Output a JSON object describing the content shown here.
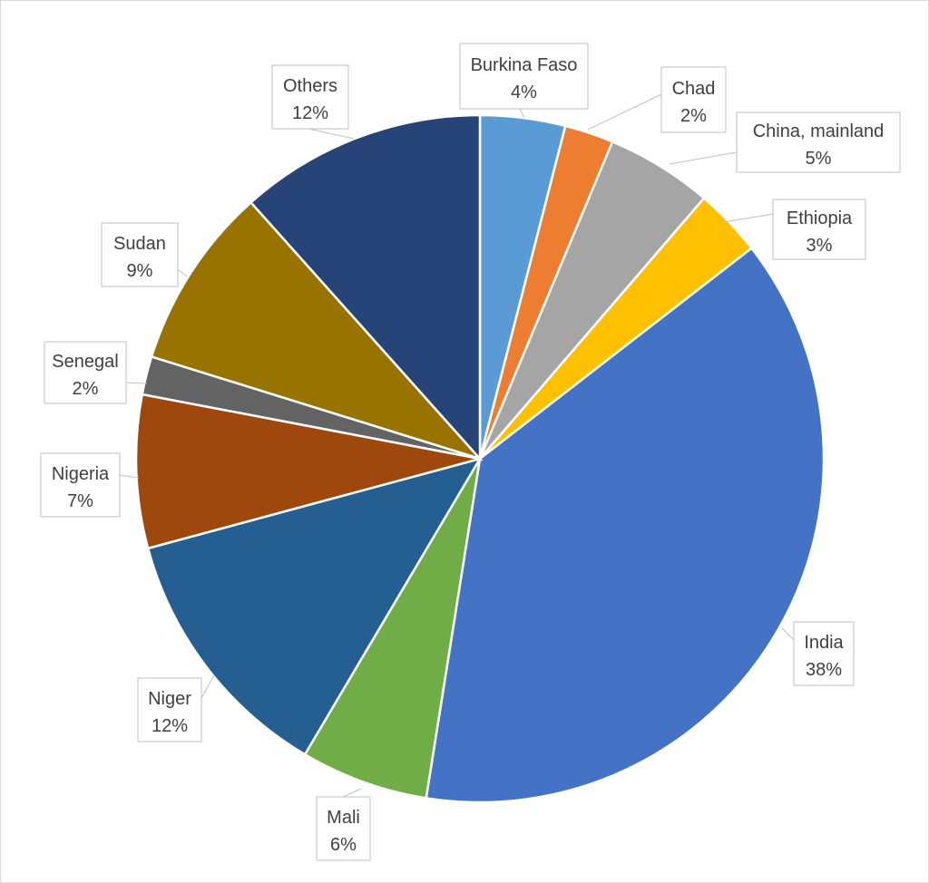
{
  "chart_data": {
    "type": "pie",
    "title": "",
    "slices": [
      {
        "label": "Burkina Faso",
        "value": 4,
        "value_label": "4%",
        "color": "#5B9BD5"
      },
      {
        "label": "Chad",
        "value": 2.3,
        "value_label": "2%",
        "color": "#ED7D31"
      },
      {
        "label": "China, mainland",
        "value": 5,
        "value_label": "5%",
        "color": "#A5A5A5"
      },
      {
        "label": "Ethiopia",
        "value": 3.2,
        "value_label": "3%",
        "color": "#FFC000"
      },
      {
        "label": "India",
        "value": 38,
        "value_label": "38%",
        "color": "#4472C4"
      },
      {
        "label": "Mali",
        "value": 6,
        "value_label": "6%",
        "color": "#70AD47"
      },
      {
        "label": "Niger",
        "value": 12.3,
        "value_label": "12%",
        "color": "#255E91"
      },
      {
        "label": "Nigeria",
        "value": 7.2,
        "value_label": "7%",
        "color": "#9E480E"
      },
      {
        "label": "Senegal",
        "value": 1.8,
        "value_label": "2%",
        "color": "#636363"
      },
      {
        "label": "Sudan",
        "value": 8.6,
        "value_label": "9%",
        "color": "#997300"
      },
      {
        "label": "Others",
        "value": 11.6,
        "value_label": "12%",
        "color": "#264478"
      }
    ],
    "legend": "none",
    "start_angle": "12 o'clock",
    "direction": "clockwise"
  }
}
